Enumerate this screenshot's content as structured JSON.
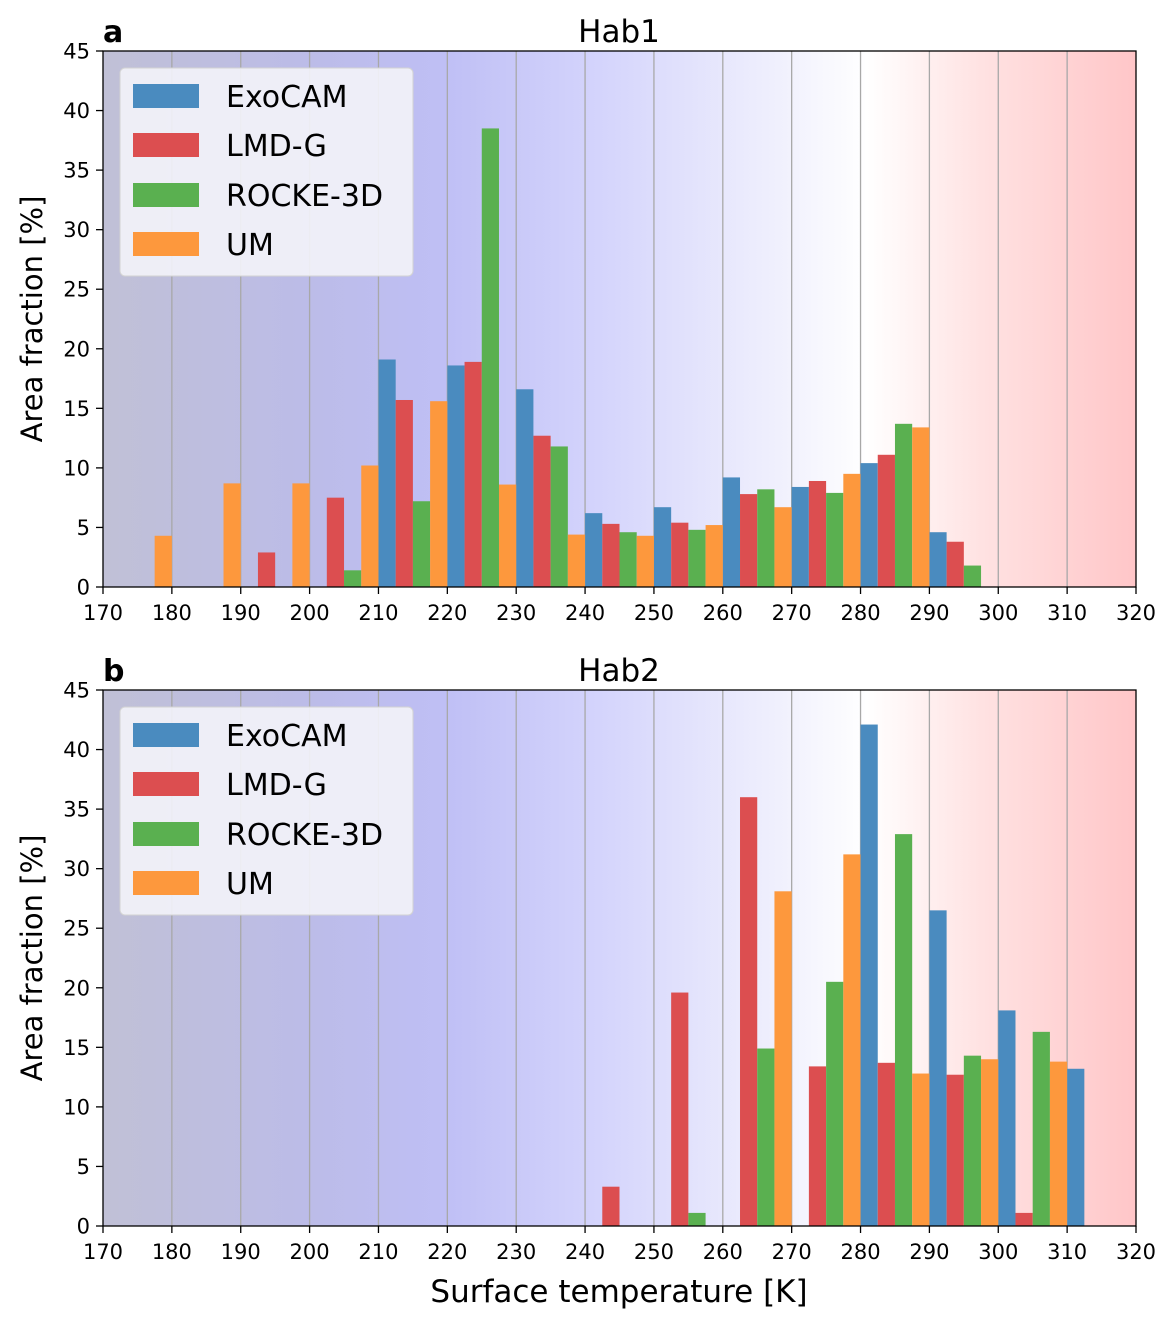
{
  "chart_data": [
    {
      "panel_label": "a",
      "title": "Hab1",
      "type": "bar",
      "ylabel": "Area fraction [%]",
      "xlabel": "",
      "xlim": [
        170,
        320
      ],
      "ylim": [
        0,
        45
      ],
      "xticks": [
        "170",
        "180",
        "190",
        "200",
        "210",
        "220",
        "230",
        "240",
        "250",
        "260",
        "270",
        "280",
        "290",
        "300",
        "310",
        "320"
      ],
      "yticks": [
        "0",
        "5",
        "10",
        "15",
        "20",
        "25",
        "30",
        "35",
        "40",
        "45"
      ],
      "bin_starts": [
        170,
        180,
        190,
        200,
        210,
        220,
        230,
        240,
        250,
        260,
        270,
        280,
        290,
        300,
        310
      ],
      "bin_width": 10,
      "legend_position": "upper-left",
      "series": [
        {
          "name": "ExoCAM",
          "color": "#4a8bbf",
          "values": [
            0,
            0,
            0,
            0,
            19.1,
            18.6,
            16.6,
            6.2,
            6.7,
            9.2,
            8.4,
            10.4,
            4.6,
            0,
            0
          ]
        },
        {
          "name": "LMD-G",
          "color": "#dc4e50",
          "values": [
            0,
            0,
            2.9,
            7.5,
            15.7,
            18.9,
            12.7,
            5.3,
            5.4,
            7.8,
            8.9,
            11.1,
            3.8,
            0,
            0
          ]
        },
        {
          "name": "ROCKE-3D",
          "color": "#5ab050",
          "values": [
            0,
            0,
            0,
            1.4,
            7.2,
            38.5,
            11.8,
            4.6,
            4.8,
            8.2,
            7.9,
            13.7,
            1.8,
            0,
            0
          ]
        },
        {
          "name": "UM",
          "color": "#fd983d",
          "values": [
            4.3,
            8.7,
            8.7,
            10.2,
            15.6,
            8.6,
            4.4,
            4.3,
            5.2,
            6.7,
            9.5,
            13.4,
            0,
            0,
            0
          ]
        }
      ]
    },
    {
      "panel_label": "b",
      "title": "Hab2",
      "type": "bar",
      "ylabel": "Area fraction [%]",
      "xlabel": "Surface temperature [K]",
      "xlim": [
        170,
        320
      ],
      "ylim": [
        0,
        45
      ],
      "xticks": [
        "170",
        "180",
        "190",
        "200",
        "210",
        "220",
        "230",
        "240",
        "250",
        "260",
        "270",
        "280",
        "290",
        "300",
        "310",
        "320"
      ],
      "yticks": [
        "0",
        "5",
        "10",
        "15",
        "20",
        "25",
        "30",
        "35",
        "40",
        "45"
      ],
      "bin_starts": [
        170,
        180,
        190,
        200,
        210,
        220,
        230,
        240,
        250,
        260,
        270,
        280,
        290,
        300,
        310
      ],
      "bin_width": 10,
      "legend_position": "upper-left",
      "series": [
        {
          "name": "ExoCAM",
          "color": "#4a8bbf",
          "values": [
            0,
            0,
            0,
            0,
            0,
            0,
            0,
            0,
            0,
            0,
            0,
            42.1,
            26.5,
            18.1,
            13.2
          ]
        },
        {
          "name": "LMD-G",
          "color": "#dc4e50",
          "values": [
            0,
            0,
            0,
            0,
            0,
            0,
            0,
            3.3,
            19.6,
            36.0,
            13.4,
            13.7,
            12.7,
            1.1,
            0
          ]
        },
        {
          "name": "ROCKE-3D",
          "color": "#5ab050",
          "values": [
            0,
            0,
            0,
            0,
            0,
            0,
            0,
            0,
            1.1,
            14.9,
            20.5,
            32.9,
            14.3,
            16.3,
            0
          ]
        },
        {
          "name": "UM",
          "color": "#fd983d",
          "values": [
            0,
            0,
            0,
            0,
            0,
            0,
            0,
            0,
            0,
            28.1,
            31.2,
            12.8,
            14.0,
            13.8,
            0
          ]
        }
      ]
    }
  ]
}
